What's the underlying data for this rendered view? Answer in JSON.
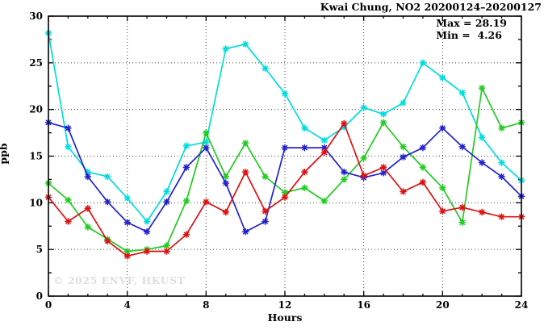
{
  "title": "Kwai Chung, NO2 20200124–20200127",
  "stats": {
    "max_label": "Max = 28.19",
    "min_label": "Min =  4.26"
  },
  "watermark": "© 2025 ENVF, HKUST",
  "chart_data": {
    "type": "line",
    "title": "Kwai Chung, NO2 20200124–20200127",
    "xlabel": "Hours",
    "ylabel": "ppb",
    "xlim": [
      0,
      24
    ],
    "ylim": [
      0,
      30
    ],
    "x_ticks": [
      0,
      4,
      8,
      12,
      16,
      20,
      24
    ],
    "y_ticks": [
      0,
      5,
      10,
      15,
      20,
      25,
      30
    ],
    "grid": true,
    "legend": "none",
    "marker": "asterisk",
    "x": [
      0,
      1,
      2,
      3,
      4,
      5,
      6,
      7,
      8,
      9,
      10,
      11,
      12,
      13,
      14,
      15,
      16,
      17,
      18,
      19,
      20,
      21,
      22,
      23,
      24
    ],
    "series": [
      {
        "name": "cyan-line",
        "color": "#00dddd",
        "values": [
          28.2,
          16.0,
          13.3,
          12.8,
          10.5,
          8.0,
          11.2,
          16.1,
          16.5,
          26.5,
          27.0,
          24.4,
          21.7,
          18.0,
          16.7,
          18.1,
          20.2,
          19.5,
          20.7,
          25.0,
          23.4,
          21.8,
          17.0,
          14.3,
          12.4
        ]
      },
      {
        "name": "green-line",
        "color": "#22cc22",
        "values": [
          12.1,
          10.3,
          7.4,
          6.1,
          4.8,
          5.0,
          5.4,
          10.2,
          17.5,
          12.8,
          16.4,
          12.8,
          11.1,
          11.6,
          10.2,
          12.5,
          14.8,
          18.6,
          16.0,
          13.8,
          11.6,
          7.9,
          22.3,
          18.0,
          18.6
        ]
      },
      {
        "name": "blue-line",
        "color": "#2222cc",
        "values": [
          18.6,
          18.0,
          12.8,
          10.1,
          7.9,
          6.9,
          10.1,
          13.8,
          15.9,
          12.1,
          6.9,
          8.0,
          15.9,
          15.9,
          15.9,
          13.3,
          12.7,
          13.2,
          14.9,
          15.9,
          18.0,
          16.0,
          14.3,
          12.8,
          10.7
        ]
      },
      {
        "name": "red-line",
        "color": "#dd1111",
        "values": [
          10.6,
          8.0,
          9.4,
          5.9,
          4.3,
          4.8,
          4.8,
          6.6,
          10.1,
          9.0,
          13.3,
          9.1,
          10.6,
          13.3,
          15.4,
          18.5,
          12.9,
          13.8,
          11.2,
          12.2,
          9.1,
          9.5,
          9.0,
          8.5,
          8.5
        ]
      }
    ],
    "annotations": [
      "Max = 28.19",
      "Min =  4.26"
    ],
    "stats": {
      "max": 28.19,
      "min": 4.26
    }
  }
}
